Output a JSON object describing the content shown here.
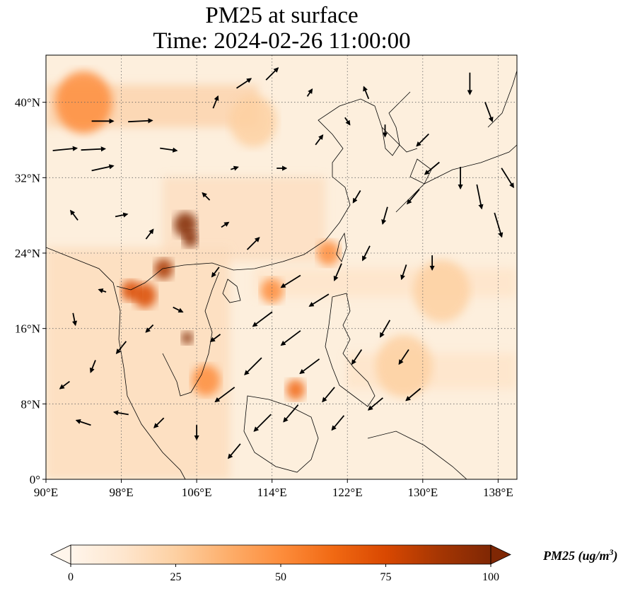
{
  "title": {
    "line1": "PM25 at surface",
    "line2": "Time: 2024-02-26 11:00:00"
  },
  "map": {
    "extent": {
      "lon_min": 90,
      "lon_max": 140,
      "lat_min": 0,
      "lat_max": 45
    },
    "lon_ticks": [
      {
        "value": 90,
        "label": "90°E"
      },
      {
        "value": 98,
        "label": "98°E"
      },
      {
        "value": 106,
        "label": "106°E"
      },
      {
        "value": 114,
        "label": "114°E"
      },
      {
        "value": 122,
        "label": "122°E"
      },
      {
        "value": 130,
        "label": "130°E"
      },
      {
        "value": 138,
        "label": "138°E"
      }
    ],
    "lat_ticks": [
      {
        "value": 0,
        "label": "0°"
      },
      {
        "value": 8,
        "label": "8°N"
      },
      {
        "value": 16,
        "label": "16°N"
      },
      {
        "value": 24,
        "label": "24°N"
      },
      {
        "value": 32,
        "label": "32°N"
      },
      {
        "value": 40,
        "label": "40°N"
      }
    ],
    "gridlines": "dotted",
    "hotspots": [
      {
        "lon": 104.8,
        "lat": 27.0,
        "value": 95,
        "spread": 1.2
      },
      {
        "lon": 105.3,
        "lat": 25.5,
        "value": 100,
        "spread": 0.8
      },
      {
        "lon": 102.5,
        "lat": 22.3,
        "value": 90,
        "spread": 1.0
      },
      {
        "lon": 99.0,
        "lat": 20.0,
        "value": 80,
        "spread": 1.0
      },
      {
        "lon": 100.5,
        "lat": 19.5,
        "value": 70,
        "spread": 1.2
      },
      {
        "lon": 105.0,
        "lat": 15.0,
        "value": 95,
        "spread": 0.6
      },
      {
        "lon": 107.0,
        "lat": 10.5,
        "value": 55,
        "spread": 1.5
      },
      {
        "lon": 114.0,
        "lat": 20.0,
        "value": 55,
        "spread": 1.2
      },
      {
        "lon": 116.5,
        "lat": 9.5,
        "value": 60,
        "spread": 1.0
      },
      {
        "lon": 120.0,
        "lat": 24.0,
        "value": 45,
        "spread": 1.2
      },
      {
        "lon": 94.0,
        "lat": 40.0,
        "value": 45,
        "spread": 3.0
      },
      {
        "lon": 112.0,
        "lat": 38.0,
        "value": 30,
        "spread": 2.5
      },
      {
        "lon": 128.0,
        "lat": 12.0,
        "value": 25,
        "spread": 3.0
      },
      {
        "lon": 132.0,
        "lat": 20.0,
        "value": 22,
        "spread": 3.0
      }
    ],
    "wind_arrows": [
      {
        "lon": 92,
        "lat": 35,
        "u": 1.0,
        "v": 0.1
      },
      {
        "lon": 95,
        "lat": 35,
        "u": 1.0,
        "v": 0.05
      },
      {
        "lon": 96,
        "lat": 38,
        "u": 0.9,
        "v": 0.0
      },
      {
        "lon": 100,
        "lat": 38,
        "u": 1.0,
        "v": 0.05
      },
      {
        "lon": 103,
        "lat": 35,
        "u": 0.7,
        "v": -0.1
      },
      {
        "lon": 96,
        "lat": 33,
        "u": 0.9,
        "v": 0.2
      },
      {
        "lon": 107,
        "lat": 30,
        "u": -0.3,
        "v": 0.3
      },
      {
        "lon": 109,
        "lat": 27,
        "u": 0.3,
        "v": 0.2
      },
      {
        "lon": 112,
        "lat": 25,
        "u": 0.5,
        "v": 0.5
      },
      {
        "lon": 111,
        "lat": 42,
        "u": 0.6,
        "v": 0.4
      },
      {
        "lon": 114,
        "lat": 43,
        "u": 0.5,
        "v": 0.5
      },
      {
        "lon": 119,
        "lat": 36,
        "u": 0.3,
        "v": 0.4
      },
      {
        "lon": 123,
        "lat": 30,
        "u": -0.3,
        "v": -0.5
      },
      {
        "lon": 126,
        "lat": 28,
        "u": -0.2,
        "v": -0.7
      },
      {
        "lon": 129,
        "lat": 30,
        "u": -0.5,
        "v": -0.6
      },
      {
        "lon": 131,
        "lat": 33,
        "u": -0.6,
        "v": -0.5
      },
      {
        "lon": 134,
        "lat": 32,
        "u": 0.0,
        "v": -0.9
      },
      {
        "lon": 136,
        "lat": 30,
        "u": 0.2,
        "v": -1.0
      },
      {
        "lon": 138,
        "lat": 27,
        "u": 0.3,
        "v": -1.0
      },
      {
        "lon": 139,
        "lat": 32,
        "u": 0.5,
        "v": -0.8
      },
      {
        "lon": 137,
        "lat": 39,
        "u": 0.3,
        "v": -0.8
      },
      {
        "lon": 135,
        "lat": 42,
        "u": 0.0,
        "v": -0.9
      },
      {
        "lon": 130,
        "lat": 36,
        "u": -0.5,
        "v": -0.5
      },
      {
        "lon": 126,
        "lat": 37,
        "u": 0.0,
        "v": -0.5
      },
      {
        "lon": 128,
        "lat": 22,
        "u": -0.2,
        "v": -0.6
      },
      {
        "lon": 131,
        "lat": 23,
        "u": 0.0,
        "v": -0.6
      },
      {
        "lon": 124,
        "lat": 24,
        "u": -0.3,
        "v": -0.6
      },
      {
        "lon": 121,
        "lat": 22,
        "u": -0.3,
        "v": -0.7
      },
      {
        "lon": 119,
        "lat": 19,
        "u": -0.8,
        "v": -0.5
      },
      {
        "lon": 116,
        "lat": 21,
        "u": -0.8,
        "v": -0.5
      },
      {
        "lon": 113,
        "lat": 17,
        "u": -0.8,
        "v": -0.6
      },
      {
        "lon": 116,
        "lat": 15,
        "u": -0.8,
        "v": -0.6
      },
      {
        "lon": 118,
        "lat": 12,
        "u": -0.8,
        "v": -0.6
      },
      {
        "lon": 112,
        "lat": 12,
        "u": -0.7,
        "v": -0.7
      },
      {
        "lon": 109,
        "lat": 9,
        "u": -0.8,
        "v": -0.6
      },
      {
        "lon": 113,
        "lat": 6,
        "u": -0.7,
        "v": -0.7
      },
      {
        "lon": 116,
        "lat": 7,
        "u": -0.6,
        "v": -0.7
      },
      {
        "lon": 120,
        "lat": 9,
        "u": -0.5,
        "v": -0.6
      },
      {
        "lon": 123,
        "lat": 13,
        "u": -0.4,
        "v": -0.6
      },
      {
        "lon": 126,
        "lat": 16,
        "u": -0.4,
        "v": -0.7
      },
      {
        "lon": 128,
        "lat": 13,
        "u": -0.4,
        "v": -0.6
      },
      {
        "lon": 129,
        "lat": 9,
        "u": -0.6,
        "v": -0.5
      },
      {
        "lon": 125,
        "lat": 8,
        "u": -0.6,
        "v": -0.5
      },
      {
        "lon": 121,
        "lat": 6,
        "u": -0.5,
        "v": -0.6
      },
      {
        "lon": 110,
        "lat": 3,
        "u": -0.5,
        "v": -0.6
      },
      {
        "lon": 106,
        "lat": 5,
        "u": 0.0,
        "v": -0.6
      },
      {
        "lon": 102,
        "lat": 6,
        "u": -0.4,
        "v": -0.4
      },
      {
        "lon": 98,
        "lat": 7,
        "u": -0.6,
        "v": 0.1
      },
      {
        "lon": 94,
        "lat": 6,
        "u": -0.6,
        "v": 0.2
      },
      {
        "lon": 92,
        "lat": 10,
        "u": -0.4,
        "v": -0.3
      },
      {
        "lon": 95,
        "lat": 12,
        "u": -0.2,
        "v": -0.5
      },
      {
        "lon": 98,
        "lat": 14,
        "u": -0.4,
        "v": -0.5
      },
      {
        "lon": 93,
        "lat": 17,
        "u": 0.1,
        "v": -0.5
      },
      {
        "lon": 96,
        "lat": 20,
        "u": -0.3,
        "v": 0.1
      },
      {
        "lon": 101,
        "lat": 26,
        "u": 0.3,
        "v": 0.4
      },
      {
        "lon": 98,
        "lat": 28,
        "u": 0.5,
        "v": 0.1
      },
      {
        "lon": 93,
        "lat": 28,
        "u": -0.3,
        "v": 0.4
      },
      {
        "lon": 108,
        "lat": 22,
        "u": -0.3,
        "v": -0.4
      },
      {
        "lon": 108,
        "lat": 15,
        "u": -0.4,
        "v": -0.3
      },
      {
        "lon": 104,
        "lat": 18,
        "u": 0.4,
        "v": -0.2
      },
      {
        "lon": 101,
        "lat": 16,
        "u": -0.3,
        "v": -0.3
      },
      {
        "lon": 124,
        "lat": 41,
        "u": -0.2,
        "v": 0.5
      },
      {
        "lon": 122,
        "lat": 38,
        "u": 0.2,
        "v": -0.3
      },
      {
        "lon": 118,
        "lat": 41,
        "u": 0.2,
        "v": 0.3
      },
      {
        "lon": 108,
        "lat": 40,
        "u": 0.2,
        "v": 0.5
      },
      {
        "lon": 115,
        "lat": 33,
        "u": 0.4,
        "v": 0.0
      },
      {
        "lon": 110,
        "lat": 33,
        "u": 0.3,
        "v": 0.1
      }
    ]
  },
  "colorbar": {
    "label": "PM25 (ug/m",
    "label_sup": "3",
    "label_close": ")",
    "min": 0,
    "max": 100,
    "extend": "both",
    "ticks": [
      {
        "value": 0,
        "label": "0"
      },
      {
        "value": 25,
        "label": "25"
      },
      {
        "value": 50,
        "label": "50"
      },
      {
        "value": 75,
        "label": "75"
      },
      {
        "value": 100,
        "label": "100"
      }
    ],
    "colors": [
      "#fff5eb",
      "#fee6ce",
      "#fdd0a2",
      "#fdae6b",
      "#fd8d3c",
      "#f16913",
      "#d94801",
      "#a63603",
      "#7f2704"
    ]
  }
}
